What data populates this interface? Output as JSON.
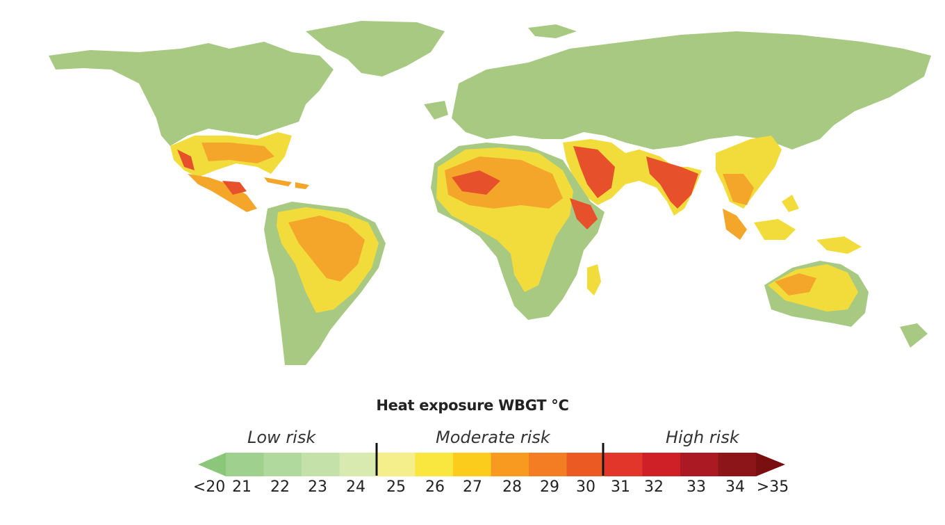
{
  "legend": {
    "title": "Heat exposure WBGT °C",
    "risk_levels": [
      "Low risk",
      "Moderate risk",
      "High risk"
    ],
    "tick_labels": [
      "<20",
      "21",
      "22",
      "23",
      "24",
      "25",
      "26",
      "27",
      "28",
      "29",
      "30",
      "31",
      "32",
      "33",
      "34",
      ">35"
    ],
    "bin_colors": [
      "#8cc67a",
      "#9fd08e",
      "#b0d99e",
      "#c4e1aa",
      "#d9eab1",
      "#f4ef8a",
      "#f9e63e",
      "#fccc1c",
      "#f89a1f",
      "#f47c22",
      "#ec5a24",
      "#e2362b",
      "#cf1f27",
      "#ab1a23",
      "#8b1518",
      "#7a0f12"
    ]
  },
  "map_colors": {
    "low": "#a8c982",
    "moderate": "#f2dc3c",
    "moderate_high": "#f4a62a",
    "high": "#e6502a"
  }
}
